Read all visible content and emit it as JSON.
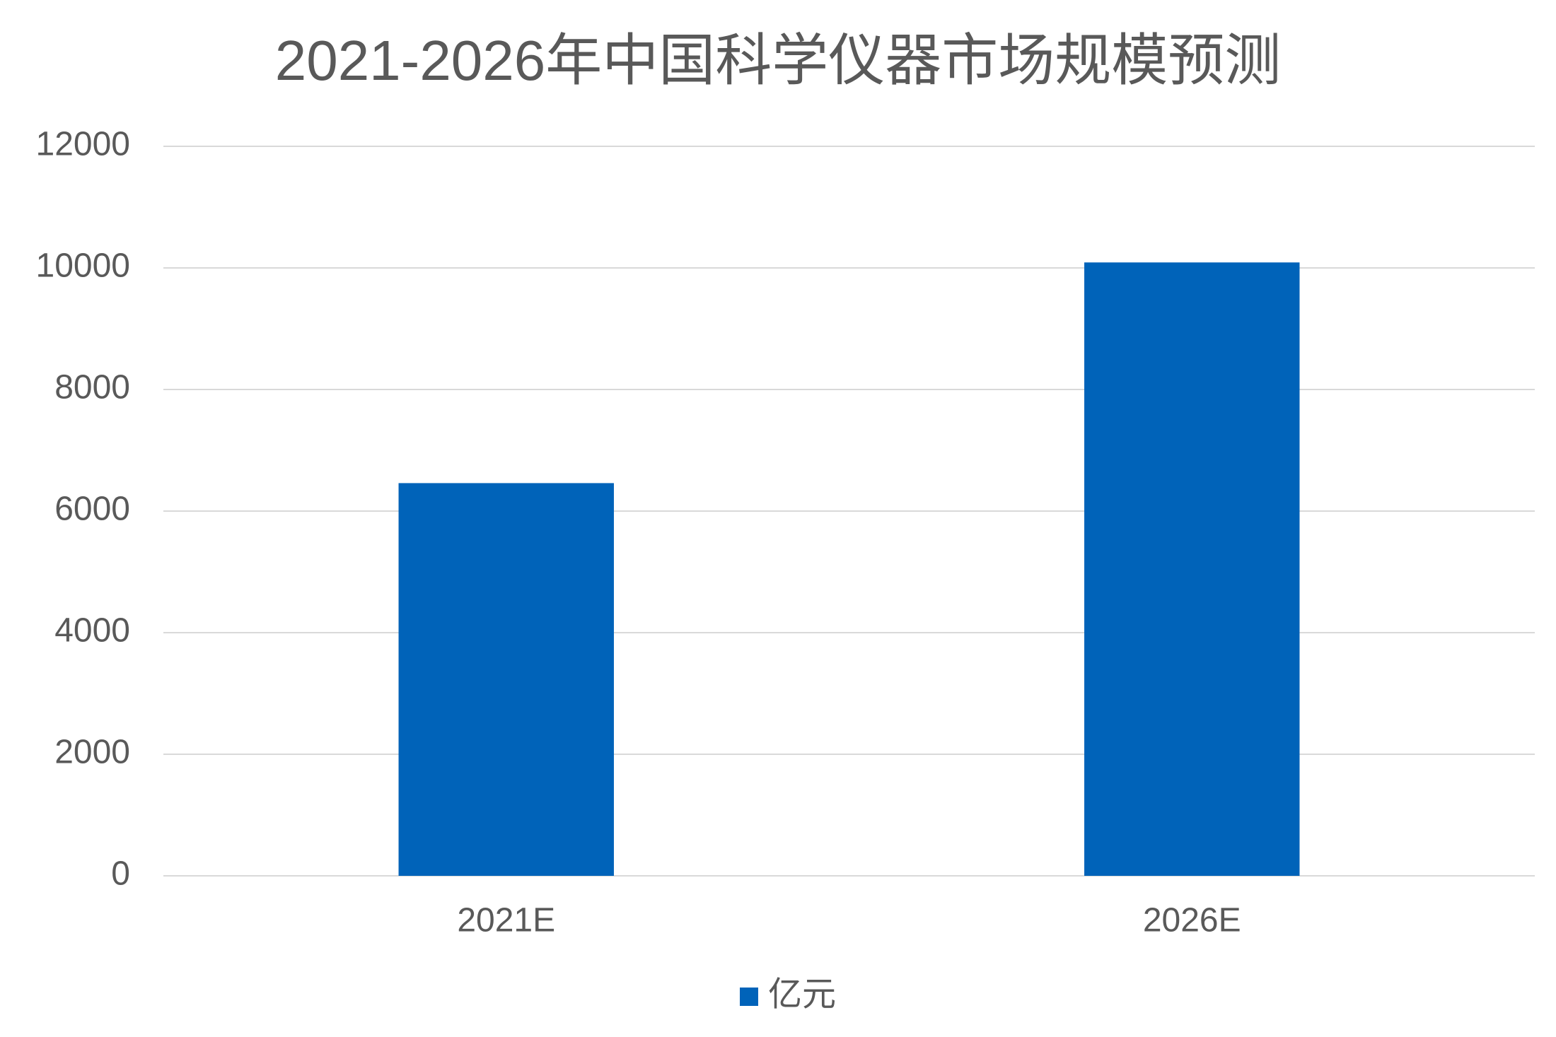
{
  "chart_data": {
    "type": "bar",
    "title": "2021-2026年中国科学仪器市场规模预测",
    "categories": [
      "2021E",
      "2026E"
    ],
    "series": [
      {
        "name": "亿元",
        "color": "#0063b9",
        "values": [
          6460,
          10090
        ]
      }
    ],
    "ylim": [
      0,
      12000
    ],
    "yticks": [
      0,
      2000,
      4000,
      6000,
      8000,
      10000,
      12000
    ],
    "grid": true,
    "legend": "bottom"
  }
}
